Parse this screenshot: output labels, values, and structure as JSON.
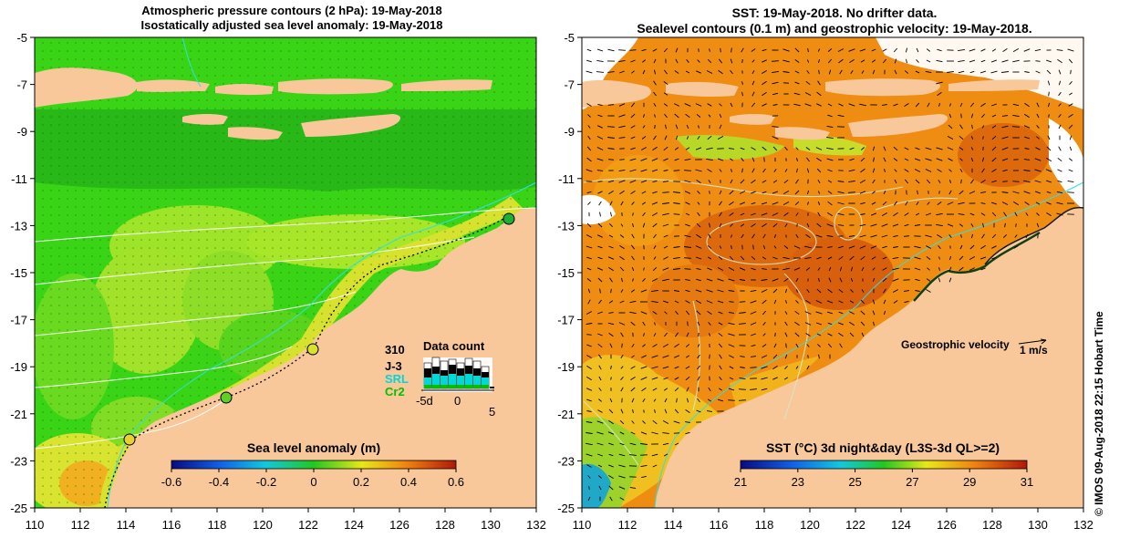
{
  "left_panel": {
    "title_line1": "Atmospheric pressure contours (2 hPa): 19-May-2018",
    "title_line2": "Isostatically adjusted sea level anomaly: 19-May-2018",
    "x_ticks": [
      110,
      112,
      114,
      116,
      118,
      120,
      122,
      124,
      126,
      128,
      130,
      132
    ],
    "y_ticks": [
      -5,
      -7,
      -9,
      -11,
      -13,
      -15,
      -17,
      -19,
      -21,
      -23,
      -25
    ],
    "colorbar": {
      "label": "Sea level anomaly (m)",
      "ticks": [
        "-0.6",
        "-0.4",
        "-0.2",
        "0",
        "0.2",
        "0.4",
        "0.6"
      ]
    },
    "data_count": {
      "title": "Data count",
      "max_label": "310",
      "missions": [
        {
          "name": "J-3",
          "color": "#000000"
        },
        {
          "name": "SRL",
          "color": "#00d8d8"
        },
        {
          "name": "Cr2",
          "color": "#00c000"
        }
      ],
      "axis_ticks": [
        "-5d",
        "0",
        "5"
      ]
    }
  },
  "right_panel": {
    "title_line1": "SST: 19-May-2018. No drifter data.",
    "title_line2": "Sealevel contours (0.1 m) and geostrophic velocity: 19-May-2018.",
    "x_ticks": [
      110,
      112,
      114,
      116,
      118,
      120,
      122,
      124,
      126,
      128,
      130,
      132
    ],
    "y_ticks": [
      -5,
      -7,
      -9,
      -11,
      -13,
      -15,
      -17,
      -19,
      -21,
      -23,
      -25
    ],
    "velocity_legend": {
      "label": "Geostrophic velocity",
      "unit": "1 m/s"
    },
    "colorbar": {
      "label": "SST (°C) 3d night&day (L3S-3d QL>=2)",
      "ticks": [
        "21",
        "23",
        "25",
        "27",
        "29",
        "31"
      ]
    }
  },
  "credit": "© IMOS 09-Aug-2018 22:15 Hobart Time",
  "colors": {
    "land": "#f8c89a",
    "sea_green": "#44d418",
    "sst_orange": "#f08a10"
  }
}
